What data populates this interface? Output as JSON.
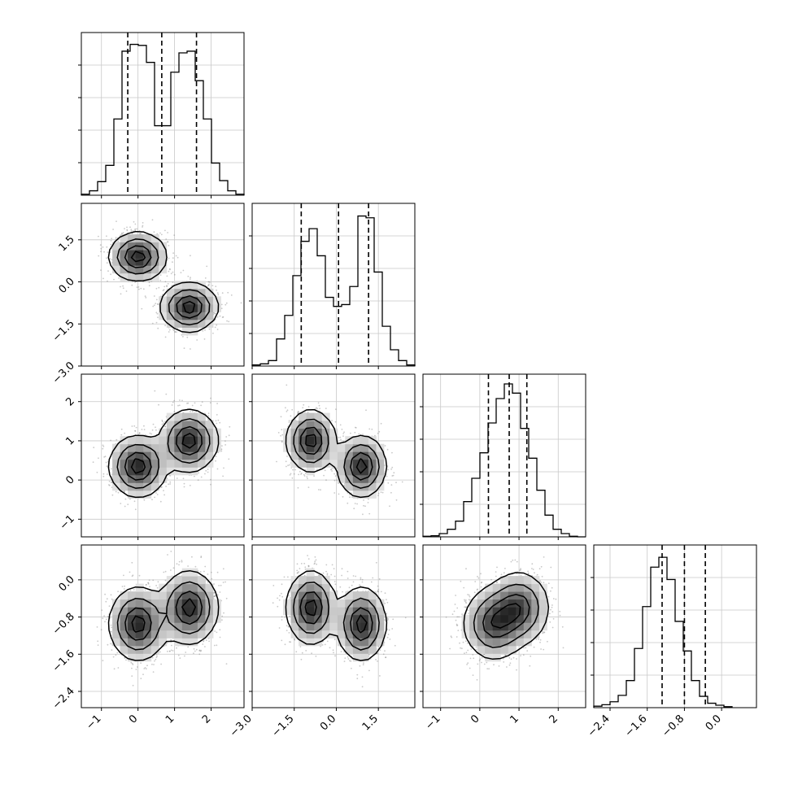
{
  "chart_data": {
    "type": "corner",
    "xlabel": "",
    "ylabel": "",
    "title": "",
    "params": [
      {
        "range": [
          -1.55,
          2.9
        ],
        "ticks": [
          -1,
          0,
          1,
          2
        ],
        "tick_labels": [
          "−1",
          "0",
          "1",
          "2"
        ],
        "hist_edges_start": -1.55,
        "hist_bin_width": 0.2225,
        "hist_counts": [
          0.3,
          1.3,
          4.0,
          8.8,
          22.5,
          42.5,
          44.5,
          44.2,
          39.2,
          20.5,
          20.5,
          36.3,
          42.0,
          42.5,
          33.8,
          22.5,
          9.5,
          4.3,
          1.3,
          0.3
        ],
        "hist_ylim": [
          0,
          48
        ],
        "quantiles": [
          -0.28,
          0.65,
          1.6
        ]
      },
      {
        "range": [
          -3.0,
          2.8
        ],
        "ticks": [
          -3.0,
          -1.5,
          0.0,
          1.5
        ],
        "tick_labels": [
          "−3.0",
          "−1.5",
          "0.0",
          "1.5"
        ],
        "hist_edges_start": -3.0,
        "hist_bin_width": 0.29,
        "hist_counts": [
          0.3,
          0.6,
          1.5,
          7.5,
          14.0,
          25.0,
          34.5,
          38.0,
          30.5,
          19.0,
          16.5,
          17.0,
          22.0,
          41.5,
          41.0,
          26.0,
          11.0,
          4.5,
          1.5,
          0.3
        ],
        "hist_ylim": [
          0,
          45
        ],
        "quantiles": [
          -1.25,
          0.08,
          1.15
        ]
      },
      {
        "range": [
          -1.45,
          2.7
        ],
        "ticks": [
          -1,
          0,
          1,
          2
        ],
        "tick_labels": [
          "−1",
          "0",
          "1",
          "2"
        ],
        "hist_edges_start": -1.45,
        "hist_bin_width": 0.2075,
        "hist_counts": [
          0.1,
          0.2,
          0.6,
          1.4,
          2.9,
          6.5,
          10.8,
          15.5,
          21.0,
          25.5,
          28.2,
          26.5,
          20.0,
          14.5,
          8.6,
          4.0,
          1.4,
          0.6,
          0.1,
          0.0
        ],
        "hist_ylim": [
          0,
          30
        ],
        "quantiles": [
          0.22,
          0.75,
          1.2
        ]
      },
      {
        "range": [
          -2.75,
          0.75
        ],
        "ticks": [
          -2.4,
          -1.6,
          -0.8,
          0.0
        ],
        "tick_labels": [
          "−2.4",
          "−1.6",
          "−0.8",
          "0.0"
        ],
        "hist_edges_start": -2.75,
        "hist_bin_width": 0.175,
        "hist_counts": [
          0.3,
          0.6,
          1.2,
          2.5,
          5.5,
          12.0,
          20.5,
          28.5,
          30.5,
          26.0,
          17.5,
          11.5,
          5.5,
          2.3,
          0.9,
          0.5,
          0.2
        ],
        "hist_ylim": [
          0,
          33
        ],
        "quantiles": [
          -1.28,
          -0.8,
          -0.35
        ]
      }
    ],
    "modes": [
      {
        "mean": [
          0.0,
          0.9,
          0.35,
          -0.95
        ],
        "sd": [
          0.38,
          0.42,
          0.38,
          0.38
        ]
      },
      {
        "mean": [
          1.4,
          -0.9,
          1.0,
          -0.6
        ],
        "sd": [
          0.38,
          0.42,
          0.38,
          0.38
        ]
      }
    ],
    "contour_levels": [
      0.12,
      0.35,
      0.65,
      0.88
    ],
    "grid": true,
    "histogram_style": "step",
    "quantile_line_style": "dashed",
    "scatter_color": "#888888"
  }
}
